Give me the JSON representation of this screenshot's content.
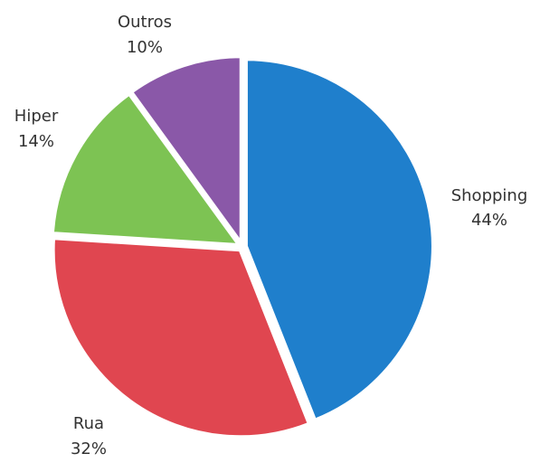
{
  "chart_data": {
    "type": "pie",
    "slices": [
      {
        "label": "Shopping",
        "value": 44,
        "value_label": "44%",
        "color": "#1f7fcc"
      },
      {
        "label": "Rua",
        "value": 32,
        "value_label": "32%",
        "color": "#e04650"
      },
      {
        "label": "Hiper",
        "value": 14,
        "value_label": "14%",
        "color": "#7dc353"
      },
      {
        "label": "Outros",
        "value": 10,
        "value_label": "10%",
        "color": "#8a58a8"
      }
    ],
    "start_angle_deg": 0,
    "direction": "clockwise",
    "legend": "none",
    "data_labels": "outside"
  }
}
